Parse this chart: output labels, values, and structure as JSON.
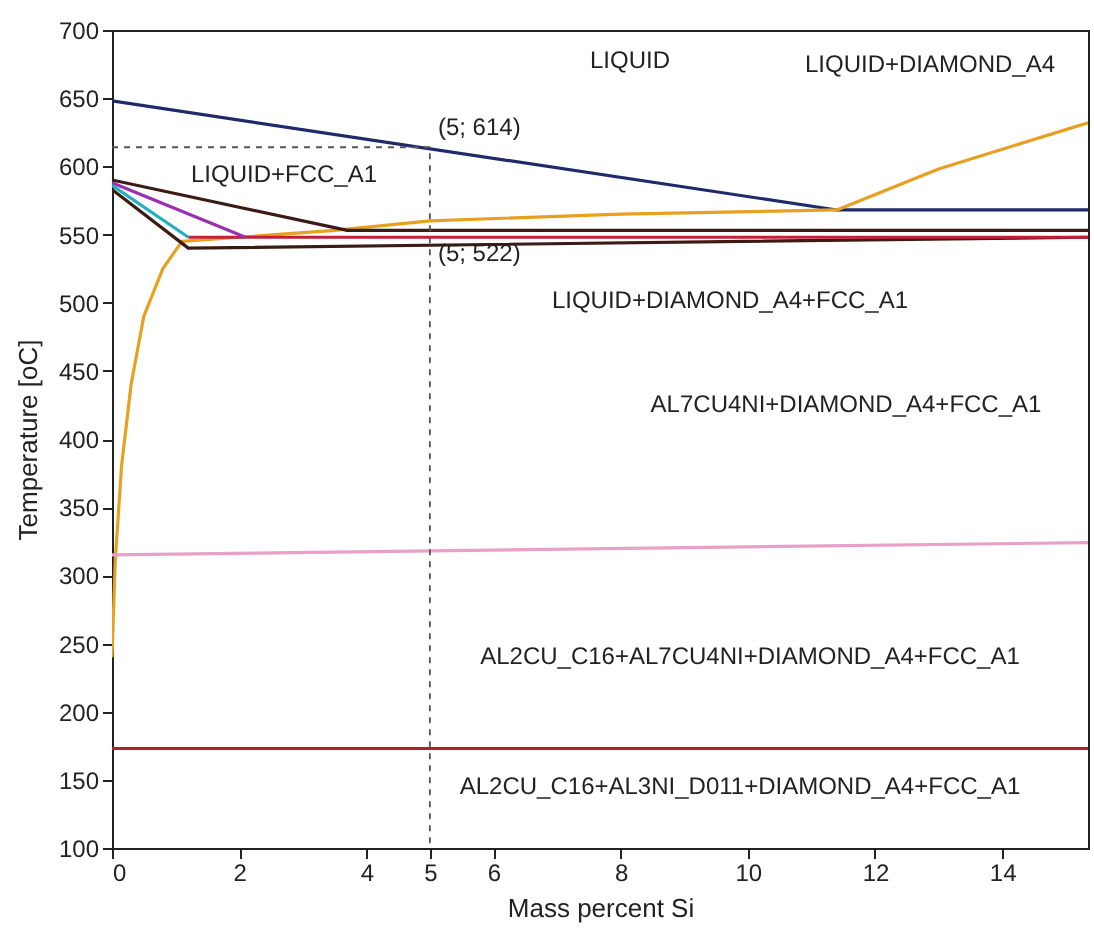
{
  "chart_data": {
    "type": "line",
    "xlabel": "Mass percent Si",
    "ylabel": "Temperature [oC]",
    "xlim": [
      0,
      15.35
    ],
    "ylim": [
      100,
      700
    ],
    "xticks": [
      0,
      2,
      4,
      5,
      6,
      8,
      10,
      12,
      14
    ],
    "yticks": [
      100,
      150,
      200,
      250,
      300,
      350,
      400,
      450,
      500,
      550,
      600,
      650,
      700
    ],
    "grid": false,
    "marker": "none",
    "series": [
      {
        "color": "#1f2a6b",
        "x": [
          0,
          11.4,
          15.35
        ],
        "values": [
          648,
          568,
          568
        ]
      },
      {
        "color": "#e8a020",
        "x": [
          0,
          0.05,
          0.15,
          0.3,
          0.5,
          0.8,
          1.1,
          2,
          3.5,
          5,
          8,
          11.4,
          13,
          15.35
        ],
        "values": [
          240,
          310,
          380,
          440,
          490,
          525,
          545,
          548,
          553,
          560,
          565,
          568,
          598,
          632
        ]
      },
      {
        "color": "#3a1c14",
        "x": [
          0,
          3.7,
          15.35
        ],
        "values": [
          590,
          553,
          553
        ]
      },
      {
        "color": "#3a1c14",
        "x": [
          0,
          1.2,
          15.35
        ],
        "values": [
          583,
          540,
          548
        ]
      },
      {
        "color": "#c0203a",
        "x": [
          1.2,
          15.35
        ],
        "values": [
          548,
          548
        ]
      },
      {
        "color": "#9b30b0",
        "x": [
          0,
          2.1
        ],
        "values": [
          588,
          548
        ]
      },
      {
        "color": "#20b0c0",
        "x": [
          0,
          1.2
        ],
        "values": [
          586,
          548
        ]
      },
      {
        "color": "#e8a0c8",
        "x": [
          0,
          15.35
        ],
        "values": [
          315,
          324
        ]
      },
      {
        "color": "#b02030",
        "x": [
          0,
          15.35
        ],
        "values": [
          173,
          173
        ]
      },
      {
        "color": "#555555",
        "line_style": "dashed",
        "x": [
          0,
          5,
          5,
          5
        ],
        "values": [
          614,
          614,
          522,
          100
        ]
      }
    ],
    "annotations": [
      "LIQUID",
      "LIQUID+DIAMOND_A4",
      {
        "text": "(5; 614)",
        "x": 5,
        "y": 614
      },
      "LIQUID+FCC_A1",
      {
        "text": "(5; 522)",
        "x": 5,
        "y": 522
      },
      "LIQUID+DIAMOND_A4+FCC_A1",
      "AL7CU4NI+DIAMOND_A4+FCC_A1",
      "AL2CU_C16+AL7CU4NI+DIAMOND_A4+FCC_A1",
      "AL2CU_C16+AL3NI_D011+DIAMOND_A4+FCC_A1"
    ]
  }
}
